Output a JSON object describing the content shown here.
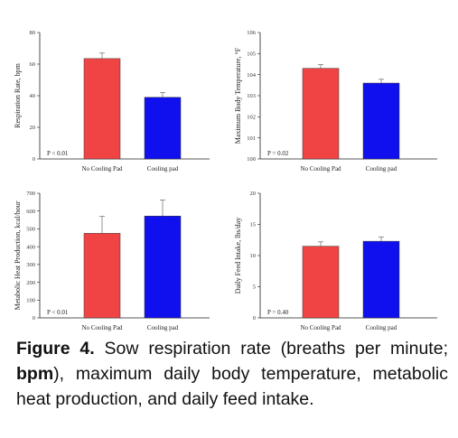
{
  "colors": {
    "bar_no_cooling": "#f04444",
    "bar_cooling": "#1010ee",
    "axis": "#222222"
  },
  "chart_data": [
    {
      "type": "bar",
      "categories": [
        "No Cooling Pad",
        "Cooling pad"
      ],
      "values": [
        63.5,
        39
      ],
      "errors": [
        3.5,
        3
      ],
      "ylabel": "Respiration Rate, bpm",
      "ylim": [
        0,
        80
      ],
      "yticks": [
        0,
        20,
        40,
        60,
        80
      ],
      "annotation": "P < 0.01"
    },
    {
      "type": "bar",
      "categories": [
        "No Cooling Pad",
        "Cooling pad"
      ],
      "values": [
        104.3,
        103.6
      ],
      "errors": [
        0.18,
        0.18
      ],
      "ylabel": "Maximum Body Temperature, °F",
      "ylim": [
        100,
        106
      ],
      "yticks": [
        100,
        101,
        102,
        103,
        104,
        105,
        106
      ],
      "annotation": "P = 0.02"
    },
    {
      "type": "bar",
      "categories": [
        "No Cooling Pad",
        "Cooling pad"
      ],
      "values": [
        475,
        572
      ],
      "errors": [
        95,
        90
      ],
      "ylabel": "Metabolic Heat Production, kcal/hour",
      "ylim": [
        0,
        700
      ],
      "yticks": [
        0,
        100,
        200,
        300,
        400,
        500,
        600,
        700
      ],
      "annotation": "P < 0.01"
    },
    {
      "type": "bar",
      "categories": [
        "No Cooling Pad",
        "Cooling pad"
      ],
      "values": [
        11.5,
        12.3
      ],
      "errors": [
        0.7,
        0.7
      ],
      "ylabel": "Daily Feed Intake, lbs/day",
      "ylim": [
        0,
        20
      ],
      "yticks": [
        0,
        5,
        10,
        15,
        20
      ],
      "annotation": "P = 0.40"
    }
  ],
  "caption": {
    "label": "Figure 4.",
    "text_1": " Sow respiration rate (breaths per minute; ",
    "bold_unit": "bpm",
    "text_2": "), maximum daily body temperature, metabolic heat production, and daily feed intake."
  }
}
